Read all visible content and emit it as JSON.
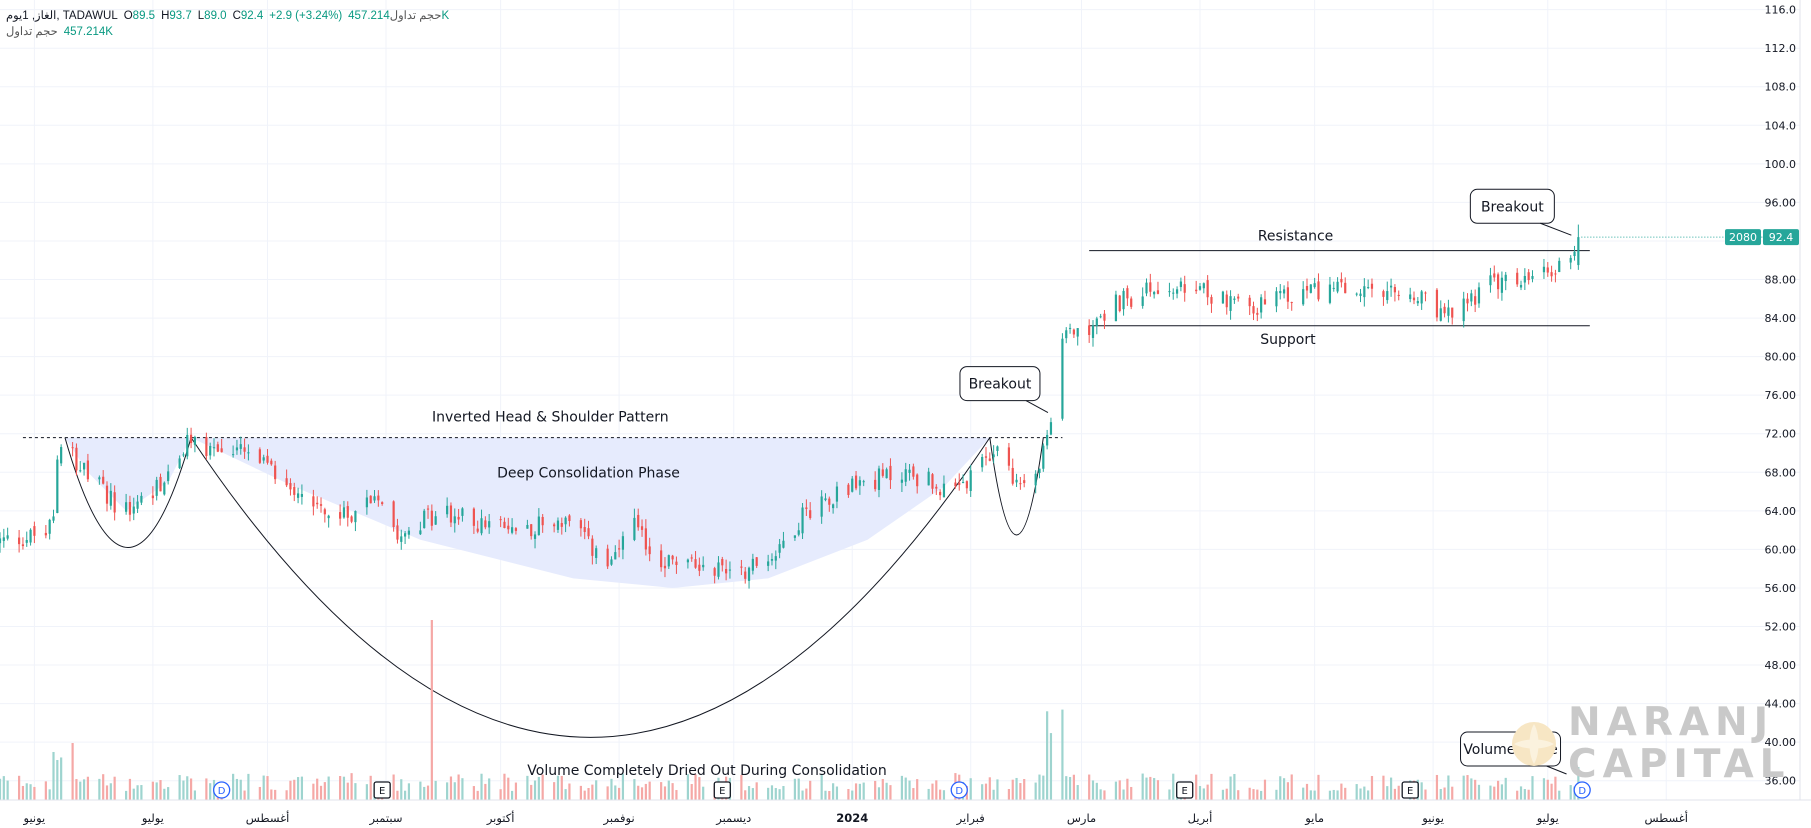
{
  "legend": {
    "symbol": "الغاز, 1يوم, TADAWUL",
    "o_label": "O",
    "o": "89.5",
    "h_label": "H",
    "h": "93.7",
    "l_label": "L",
    "l": "89.0",
    "c_label": "C",
    "c": "92.4",
    "change": "+2.9 (+3.24%)",
    "vol_label": "حجم تداول",
    "vol": "457.214K"
  },
  "price_tags": {
    "symbol_code": "2080",
    "last_price": "92.4"
  },
  "watermark": {
    "line1": "NARANJ",
    "line2": "CAPITAL"
  },
  "annotations": {
    "pattern": "Inverted Head & Shoulder Pattern",
    "consolidation": "Deep Consolidation Phase",
    "volume_note": "Volume Completely Dried Out During Consolidation",
    "resistance": "Resistance",
    "support": "Support",
    "breakout1": "Breakout",
    "breakout2": "Breakout",
    "volume_spike": "Volume Spike"
  },
  "events": [
    {
      "kind": "D",
      "date": "2023-07-20"
    },
    {
      "kind": "E",
      "date": "2023-08-31"
    },
    {
      "kind": "E",
      "date": "2023-11-28"
    },
    {
      "kind": "D",
      "date": "2024-01-29"
    },
    {
      "kind": "E",
      "date": "2024-03-28"
    },
    {
      "kind": "E",
      "date": "2024-05-26"
    },
    {
      "kind": "D",
      "date": "2024-07-10"
    }
  ],
  "colors": {
    "up": "#26a69a",
    "down": "#ef5350",
    "vol_up": "#9ed4cf",
    "vol_down": "#f5a8a6",
    "fill": "#e6ebfd",
    "tag": "#26a69a",
    "grid": "#f0f3fa"
  },
  "chart_data": {
    "type": "candlestick",
    "interval": "1D",
    "y_axis_ticks": [
      36,
      40,
      44,
      48,
      52,
      56,
      60,
      64,
      68,
      72,
      76,
      80,
      84,
      88,
      92,
      96,
      100,
      104,
      108,
      112,
      116
    ],
    "y_tick_labels": [
      "36.00",
      "40.00",
      "44.00",
      "48.00",
      "52.00",
      "56.00",
      "60.00",
      "64.00",
      "68.00",
      "72.00",
      "76.00",
      "80.00",
      "84.00",
      "88.00",
      "92.00",
      "96.00",
      "100.0",
      "104.0",
      "108.0",
      "112.0",
      "116.0"
    ],
    "ylim": [
      34,
      117
    ],
    "xlim": [
      "2023-05-23",
      "2024-09-05"
    ],
    "x_axis_ticks": [
      {
        "date": "2023-06-01",
        "label": "يونيو"
      },
      {
        "date": "2023-07-02",
        "label": "يوليو"
      },
      {
        "date": "2023-08-01",
        "label": "أغسطس"
      },
      {
        "date": "2023-09-01",
        "label": "سبتمبر"
      },
      {
        "date": "2023-10-01",
        "label": "أكتوبر"
      },
      {
        "date": "2023-11-01",
        "label": "نوفمبر"
      },
      {
        "date": "2023-12-01",
        "label": "ديسمبر"
      },
      {
        "date": "2024-01-01",
        "label": "2024"
      },
      {
        "date": "2024-02-01",
        "label": "فبراير"
      },
      {
        "date": "2024-03-01",
        "label": "مارس"
      },
      {
        "date": "2024-04-01",
        "label": "أبريل"
      },
      {
        "date": "2024-05-01",
        "label": "مايو"
      },
      {
        "date": "2024-06-01",
        "label": "يونيو"
      },
      {
        "date": "2024-07-01",
        "label": "يوليو"
      },
      {
        "date": "2024-08-01",
        "label": "أغسطس"
      }
    ],
    "levels": {
      "neckline": 71.6,
      "resistance": 91.0,
      "support": 83.2
    },
    "close_path": [
      [
        "2023-05-23",
        60.8
      ],
      [
        "2023-06-04",
        61.6
      ],
      [
        "2023-06-06",
        63.0
      ],
      [
        "2023-06-07",
        69.5
      ],
      [
        "2023-06-09",
        71.0
      ],
      [
        "2023-06-15",
        67.5
      ],
      [
        "2023-06-25",
        63.8
      ],
      [
        "2023-07-06",
        67.5
      ],
      [
        "2023-07-12",
        71.5
      ],
      [
        "2023-07-16",
        70.5
      ],
      [
        "2023-07-26",
        70.0
      ],
      [
        "2023-08-08",
        66.5
      ],
      [
        "2023-08-20",
        63.0
      ],
      [
        "2023-08-30",
        66.0
      ],
      [
        "2023-09-04",
        62.0
      ],
      [
        "2023-09-16",
        63.8
      ],
      [
        "2023-10-02",
        62.0
      ],
      [
        "2023-10-18",
        63.0
      ],
      [
        "2023-10-30",
        58.0
      ],
      [
        "2023-11-04",
        63.0
      ],
      [
        "2023-11-10",
        59.0
      ],
      [
        "2023-11-25",
        58.2
      ],
      [
        "2023-12-05",
        58.0
      ],
      [
        "2023-12-12",
        59.8
      ],
      [
        "2023-12-20",
        64.0
      ],
      [
        "2023-12-30",
        66.5
      ],
      [
        "2024-01-15",
        68.0
      ],
      [
        "2024-01-22",
        67.0
      ],
      [
        "2024-01-27",
        65.3
      ],
      [
        "2024-02-03",
        68.0
      ],
      [
        "2024-02-07",
        70.5
      ],
      [
        "2024-02-11",
        68.5
      ],
      [
        "2024-02-14",
        66.5
      ],
      [
        "2024-02-20",
        70.0
      ],
      [
        "2024-02-22",
        73.0
      ],
      [
        "2024-02-23",
        80.0
      ],
      [
        "2024-02-25",
        82.5
      ],
      [
        "2024-03-05",
        83.5
      ],
      [
        "2024-03-10",
        85.5
      ],
      [
        "2024-03-20",
        87.0
      ],
      [
        "2024-04-05",
        86.5
      ],
      [
        "2024-04-15",
        85.0
      ],
      [
        "2024-05-01",
        87.0
      ],
      [
        "2024-05-15",
        86.5
      ],
      [
        "2024-05-28",
        86.0
      ],
      [
        "2024-06-05",
        84.0
      ],
      [
        "2024-06-15",
        87.5
      ],
      [
        "2024-06-28",
        88.0
      ],
      [
        "2024-07-05",
        89.5
      ],
      [
        "2024-07-09",
        92.4
      ]
    ],
    "last_candle": {
      "date": "2024-07-09",
      "open": 89.5,
      "high": 93.7,
      "low": 89.0,
      "close": 92.4,
      "volume": "457.214K"
    },
    "volume_spike_date": "2023-09-13"
  }
}
